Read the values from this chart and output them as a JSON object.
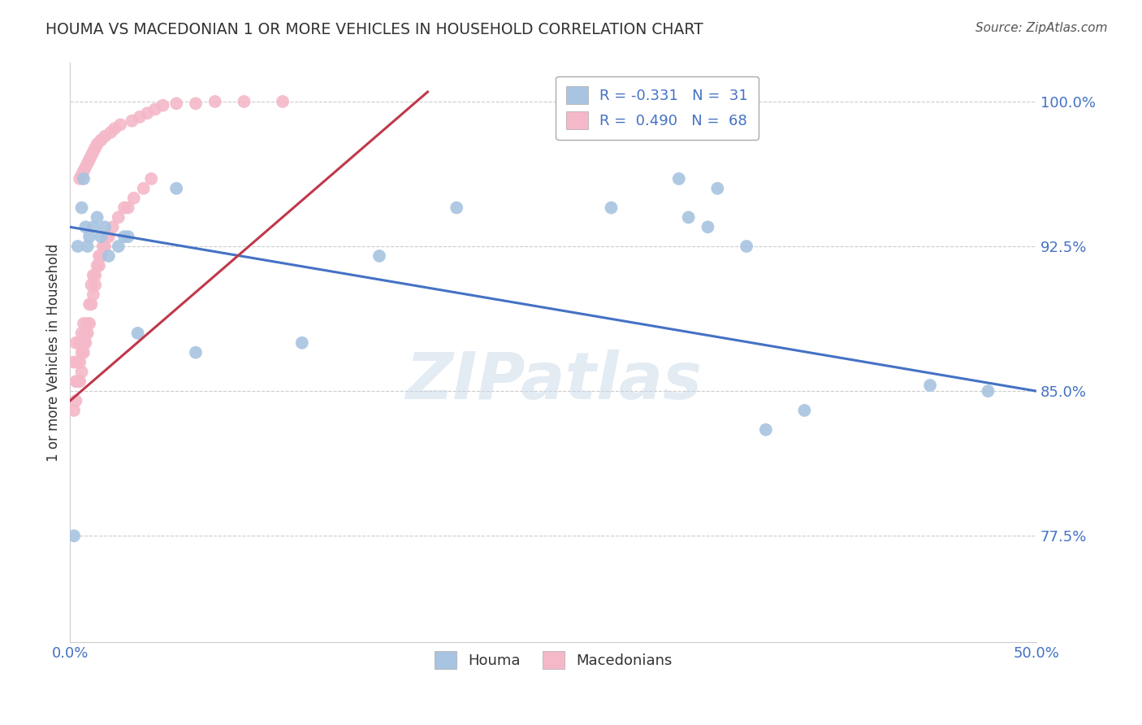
{
  "title": "HOUMA VS MACEDONIAN 1 OR MORE VEHICLES IN HOUSEHOLD CORRELATION CHART",
  "source": "Source: ZipAtlas.com",
  "ylabel": "1 or more Vehicles in Household",
  "xlim": [
    0.0,
    0.5
  ],
  "ylim": [
    0.72,
    1.02
  ],
  "yticks": [
    0.775,
    0.85,
    0.925,
    1.0
  ],
  "ytick_labels": [
    "77.5%",
    "85.0%",
    "92.5%",
    "100.0%"
  ],
  "xticks": [
    0.0,
    0.0625,
    0.125,
    0.1875,
    0.25,
    0.3125,
    0.375,
    0.4375,
    0.5
  ],
  "xtick_labels": [
    "0.0%",
    "",
    "",
    "",
    "",
    "",
    "",
    "",
    "50.0%"
  ],
  "legend_entries": [
    {
      "label": "R = -0.331",
      "N": "31",
      "color": "#a8c4e0"
    },
    {
      "label": "R =  0.490",
      "N": "68",
      "color": "#f4b8c8"
    }
  ],
  "legend_bottom": [
    {
      "label": "Houma",
      "color": "#a8c4e0"
    },
    {
      "label": "Macedonians",
      "color": "#f4b8c8"
    }
  ],
  "houma_x": [
    0.002,
    0.004,
    0.006,
    0.007,
    0.008,
    0.009,
    0.01,
    0.012,
    0.014,
    0.016,
    0.018,
    0.02,
    0.025,
    0.028,
    0.03,
    0.035,
    0.055,
    0.065,
    0.12,
    0.16,
    0.2,
    0.28,
    0.315,
    0.335,
    0.36,
    0.38,
    0.445,
    0.475,
    0.32,
    0.33,
    0.35
  ],
  "houma_y": [
    0.775,
    0.925,
    0.945,
    0.96,
    0.935,
    0.925,
    0.93,
    0.935,
    0.94,
    0.93,
    0.935,
    0.92,
    0.925,
    0.93,
    0.93,
    0.88,
    0.955,
    0.87,
    0.875,
    0.92,
    0.945,
    0.945,
    0.96,
    0.955,
    0.83,
    0.84,
    0.853,
    0.85,
    0.94,
    0.935,
    0.925
  ],
  "macedonian_x": [
    0.002,
    0.002,
    0.003,
    0.003,
    0.003,
    0.004,
    0.004,
    0.005,
    0.005,
    0.005,
    0.006,
    0.006,
    0.006,
    0.007,
    0.007,
    0.007,
    0.008,
    0.008,
    0.009,
    0.009,
    0.01,
    0.01,
    0.011,
    0.011,
    0.012,
    0.012,
    0.013,
    0.013,
    0.014,
    0.015,
    0.015,
    0.016,
    0.017,
    0.018,
    0.019,
    0.02,
    0.022,
    0.025,
    0.028,
    0.03,
    0.033,
    0.038,
    0.042,
    0.005,
    0.006,
    0.007,
    0.008,
    0.009,
    0.01,
    0.011,
    0.012,
    0.013,
    0.014,
    0.016,
    0.018,
    0.021,
    0.023,
    0.026,
    0.032,
    0.036,
    0.04,
    0.044,
    0.048,
    0.055,
    0.065,
    0.075,
    0.09,
    0.11
  ],
  "macedonian_y": [
    0.84,
    0.865,
    0.845,
    0.855,
    0.875,
    0.855,
    0.865,
    0.855,
    0.865,
    0.875,
    0.86,
    0.87,
    0.88,
    0.87,
    0.875,
    0.885,
    0.875,
    0.88,
    0.88,
    0.885,
    0.885,
    0.895,
    0.895,
    0.905,
    0.9,
    0.91,
    0.905,
    0.91,
    0.915,
    0.915,
    0.92,
    0.92,
    0.925,
    0.925,
    0.93,
    0.93,
    0.935,
    0.94,
    0.945,
    0.945,
    0.95,
    0.955,
    0.96,
    0.96,
    0.962,
    0.964,
    0.966,
    0.968,
    0.97,
    0.972,
    0.974,
    0.976,
    0.978,
    0.98,
    0.982,
    0.984,
    0.986,
    0.988,
    0.99,
    0.992,
    0.994,
    0.996,
    0.998,
    0.999,
    0.999,
    1.0,
    1.0,
    1.0
  ],
  "houma_color": "#a8c4e0",
  "houma_line_color": "#4472c4",
  "macedonian_color": "#f4b8c8",
  "macedonian_line_color": "#c0384b",
  "houma_trend_x": [
    0.0,
    0.5
  ],
  "houma_trend_y": [
    0.935,
    0.85
  ],
  "macedonian_trend_x": [
    0.0,
    0.185
  ],
  "macedonian_trend_y": [
    0.845,
    1.005
  ],
  "watermark_text": "ZIPatlas",
  "background_color": "#ffffff",
  "grid_color": "#cccccc",
  "title_color": "#333333",
  "tick_color": "#4472c4",
  "source_color": "#555555"
}
